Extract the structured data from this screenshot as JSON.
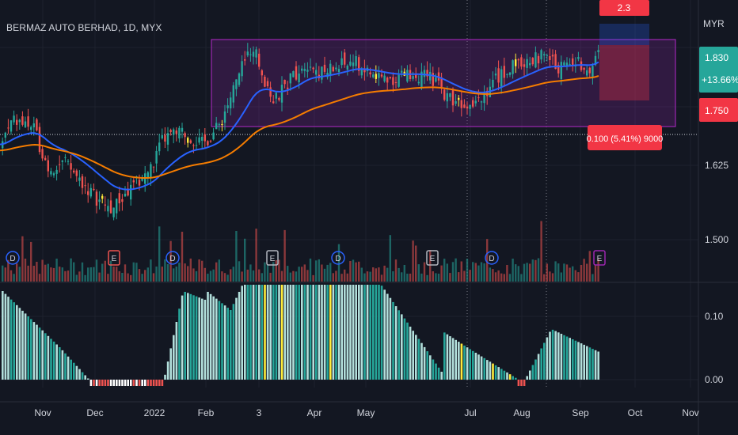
{
  "header": {
    "title": "BERMAZ AUTO BERHAD, 1D, MYX"
  },
  "price_axis": {
    "currency": "MYR",
    "last_price": "1.830",
    "change_pct": "+13.66%",
    "red_level": "1.750",
    "ticks": [
      "1.625",
      "1.500"
    ]
  },
  "oscillator_axis": {
    "ticks": [
      "0.10",
      "0.00"
    ]
  },
  "time_axis": {
    "labels": [
      "Nov",
      "Dec",
      "2022",
      "Feb",
      "3",
      "Apr",
      "May",
      "Jul",
      "Aug",
      "Sep",
      "Oct",
      "Nov"
    ]
  },
  "measure_tool": {
    "top_label": "2.3",
    "bottom_label": "0.100 (5.41%) 9000"
  },
  "event_markers": [
    "D",
    "E",
    "D",
    "E",
    "D",
    "E",
    "D",
    "E"
  ],
  "colors": {
    "background": "#131722",
    "up": "#26a69a",
    "down": "#ef5350",
    "highlight": "#ffeb3b",
    "ema_fast": "#2962ff",
    "ema_slow": "#f57c00",
    "range_box": "#9c27b0",
    "price_tag_green": "#26a69a",
    "price_tag_red": "#f23645",
    "osc_light": "#b2dfdb",
    "osc_dark": "#26a69a"
  },
  "chart_data": [
    {
      "type": "candlestick",
      "title": "BERMAZ AUTO BERHAD, 1D, MYX",
      "ylim": [
        1.43,
        1.9
      ],
      "x_labels": [
        "Nov",
        "Dec",
        "2022",
        "Feb",
        "3",
        "Apr",
        "May",
        "Jul",
        "Aug",
        "Sep",
        "Oct",
        "Nov"
      ],
      "series": [
        {
          "name": "price",
          "approx_path": [
            {
              "x": "Nov",
              "y": 1.66
            },
            {
              "x": "Dec",
              "y": 1.58
            },
            {
              "x": "Dec-mid",
              "y": 1.55
            },
            {
              "x": "2022",
              "y": 1.6
            },
            {
              "x": "Jan-end",
              "y": 1.66
            },
            {
              "x": "Feb",
              "y": 1.68
            },
            {
              "x": "Feb-mid",
              "y": 1.84
            },
            {
              "x": "3",
              "y": 1.73
            },
            {
              "x": "Apr",
              "y": 1.79
            },
            {
              "x": "May",
              "y": 1.78
            },
            {
              "x": "Jun",
              "y": 1.77
            },
            {
              "x": "Jul",
              "y": 1.73
            },
            {
              "x": "Aug",
              "y": 1.79
            },
            {
              "x": "Sep",
              "y": 1.8
            },
            {
              "x": "last",
              "y": 1.83
            }
          ]
        },
        {
          "name": "ema_fast",
          "approx_path": [
            {
              "x": "Nov",
              "y": 1.64
            },
            {
              "x": "Dec",
              "y": 1.58
            },
            {
              "x": "2022",
              "y": 1.59
            },
            {
              "x": "Feb",
              "y": 1.67
            },
            {
              "x": "3",
              "y": 1.73
            },
            {
              "x": "Apr",
              "y": 1.76
            },
            {
              "x": "May",
              "y": 1.78
            },
            {
              "x": "Jul",
              "y": 1.75
            },
            {
              "x": "Aug",
              "y": 1.77
            },
            {
              "x": "Sep",
              "y": 1.8
            }
          ]
        },
        {
          "name": "ema_slow",
          "approx_path": [
            {
              "x": "Nov",
              "y": 1.62
            },
            {
              "x": "Dec",
              "y": 1.61
            },
            {
              "x": "2022",
              "y": 1.61
            },
            {
              "x": "Feb",
              "y": 1.63
            },
            {
              "x": "3",
              "y": 1.7
            },
            {
              "x": "Apr",
              "y": 1.74
            },
            {
              "x": "May",
              "y": 1.76
            },
            {
              "x": "Jul",
              "y": 1.76
            },
            {
              "x": "Aug",
              "y": 1.76
            },
            {
              "x": "Sep",
              "y": 1.78
            }
          ]
        }
      ],
      "range_box": {
        "top": 1.86,
        "bottom": 1.72
      },
      "grid": true,
      "legend": "none"
    },
    {
      "type": "bar",
      "title": "",
      "ylim": [
        0,
        0.15
      ],
      "approx_profile": [
        {
          "x": "Nov",
          "y": 0.14
        },
        {
          "x": "Nov-end",
          "y": 0.05
        },
        {
          "x": "Dec",
          "y": -0.005
        },
        {
          "x": "2022",
          "y": -0.005
        },
        {
          "x": "Feb",
          "y": 0.14
        },
        {
          "x": "Feb-mid",
          "y": 0.11
        },
        {
          "x": "3",
          "y": 0.15
        },
        {
          "x": "May",
          "y": 0.14
        },
        {
          "x": "Jun",
          "y": 0.05
        },
        {
          "x": "Jul",
          "y": -0.005
        },
        {
          "x": "Aug",
          "y": 0.08
        },
        {
          "x": "Sep",
          "y": 0.04
        }
      ]
    }
  ]
}
